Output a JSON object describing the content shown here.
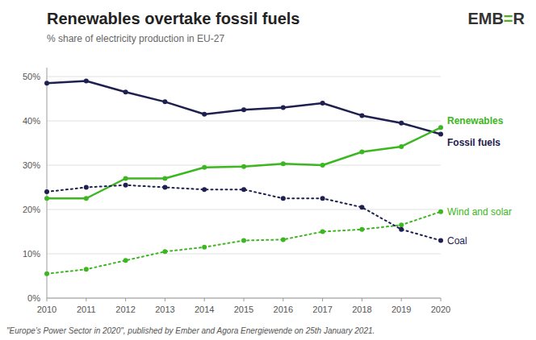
{
  "chart_data": {
    "type": "line",
    "title": "Renewables overtake fossil fuels",
    "subtitle": "% share of electricity production in EU-27",
    "footnote": "\"Europe’s Power Sector in 2020\", published by Ember and Agora Energiewende on 25th January 2021.",
    "annotations": [
      {
        "text": "EMB",
        "color": "#333333"
      },
      {
        "text": "=",
        "color": "#4caf1e"
      },
      {
        "text": "R",
        "color": "#333333"
      }
    ],
    "x": [
      2010,
      2011,
      2012,
      2013,
      2014,
      2015,
      2016,
      2017,
      2018,
      2019,
      2020
    ],
    "series": [
      {
        "name": "Fossil fuels",
        "color": "#1e2050",
        "line_style": "solid",
        "marker": "circle",
        "values": [
          48.5,
          49.0,
          46.5,
          44.3,
          41.5,
          42.5,
          43.0,
          44.0,
          41.2,
          39.5,
          37.0
        ]
      },
      {
        "name": "Renewables",
        "color": "#3cb621",
        "line_style": "solid",
        "marker": "circle",
        "values": [
          22.5,
          22.5,
          27.0,
          27.0,
          29.5,
          29.7,
          30.3,
          30.0,
          33.0,
          34.2,
          38.5
        ]
      },
      {
        "name": "Wind and solar",
        "color": "#3cb621",
        "line_style": "dotted",
        "marker": "circle",
        "values": [
          5.5,
          6.5,
          8.5,
          10.5,
          11.5,
          13.0,
          13.2,
          15.0,
          15.5,
          16.5,
          19.5
        ]
      },
      {
        "name": "Coal",
        "color": "#1e2050",
        "line_style": "dotted",
        "marker": "circle",
        "values": [
          24.0,
          25.0,
          25.5,
          25.0,
          24.5,
          24.5,
          22.5,
          22.5,
          20.5,
          15.5,
          13.0
        ]
      }
    ],
    "xlim": [
      2010,
      2020
    ],
    "xticks": [
      2010,
      2011,
      2012,
      2013,
      2014,
      2015,
      2016,
      2017,
      2018,
      2019,
      2020
    ],
    "ylim": [
      0,
      52
    ],
    "yticks": [
      {
        "value": 0,
        "label": "0%"
      },
      {
        "value": 10,
        "label": "10%"
      },
      {
        "value": 20,
        "label": "20%"
      },
      {
        "value": 30,
        "label": "30%"
      },
      {
        "value": 40,
        "label": "40%"
      },
      {
        "value": 50,
        "label": "50%"
      }
    ],
    "grid": true
  }
}
